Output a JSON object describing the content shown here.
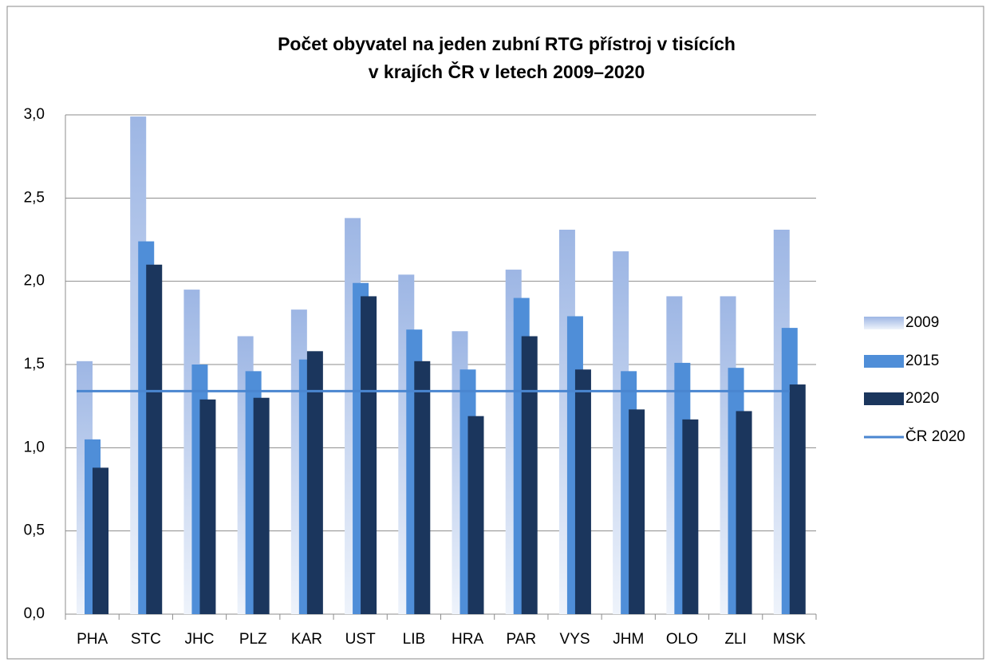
{
  "chart_data": {
    "type": "bar",
    "title": [
      "Počet obyvatel na jeden zubní RTG přístroj v tisících",
      "v krajích ČR v letech 2009–2020"
    ],
    "categories": [
      "PHA",
      "STC",
      "JHC",
      "PLZ",
      "KAR",
      "UST",
      "LIB",
      "HRA",
      "PAR",
      "VYS",
      "JHM",
      "OLO",
      "ZLI",
      "MSK"
    ],
    "series": [
      {
        "name": "2009",
        "color": "#9db6e4",
        "values": [
          1.52,
          2.99,
          1.95,
          1.67,
          1.83,
          2.38,
          2.04,
          1.7,
          2.07,
          2.31,
          2.18,
          1.91,
          1.91,
          2.31
        ]
      },
      {
        "name": "2015",
        "color": "#4f8ed8",
        "values": [
          1.05,
          2.24,
          1.5,
          1.46,
          1.53,
          1.99,
          1.71,
          1.47,
          1.9,
          1.79,
          1.46,
          1.51,
          1.48,
          1.72
        ]
      },
      {
        "name": "2020",
        "color": "#1b365d",
        "values": [
          0.88,
          2.1,
          1.29,
          1.3,
          1.58,
          1.91,
          1.52,
          1.19,
          1.67,
          1.47,
          1.23,
          1.17,
          1.22,
          1.38
        ]
      }
    ],
    "reference_line": {
      "name": "ČR 2020",
      "value": 1.34,
      "color": "#4a86d0"
    },
    "ylim": [
      0,
      3
    ],
    "yticks": [
      {
        "value": 0,
        "label": "0,0"
      },
      {
        "value": 0.5,
        "label": "0,5"
      },
      {
        "value": 1,
        "label": "1,0"
      },
      {
        "value": 1.5,
        "label": "1,5"
      },
      {
        "value": 2,
        "label": "2,0"
      },
      {
        "value": 2.5,
        "label": "2,5"
      },
      {
        "value": 3,
        "label": "3,0"
      }
    ],
    "grid": true,
    "legend": "right"
  }
}
